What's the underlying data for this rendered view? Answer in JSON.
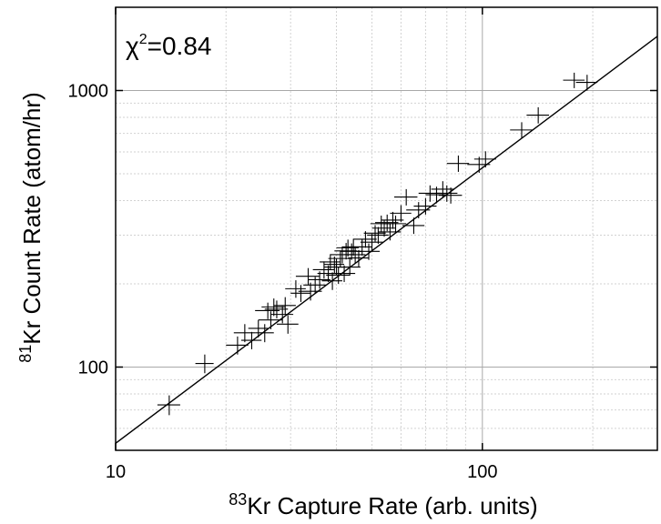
{
  "chart_data": {
    "type": "scatter",
    "xscale": "log",
    "yscale": "log",
    "xlim": [
      10,
      300
    ],
    "ylim": [
      50,
      2000
    ],
    "x_ticks": [
      10,
      100
    ],
    "x_tick_labels": [
      "10",
      "100"
    ],
    "y_ticks": [
      100,
      1000
    ],
    "y_tick_labels": [
      "100",
      "1000"
    ],
    "xlabel": {
      "sup": "83",
      "text": "Kr Capture Rate (arb. units)"
    },
    "ylabel": {
      "sup": "81",
      "text": "Kr Count Rate (atom/hr)"
    },
    "annotation": {
      "prefix": "χ",
      "sup": "2",
      "text": "=0.84"
    },
    "grid": true,
    "fit_line": {
      "x": [
        10,
        300
      ],
      "y": [
        53,
        1570
      ]
    },
    "series": [
      {
        "marker": "cross-error",
        "x": [
          14.0,
          17.5,
          21.5,
          22.5,
          23.5,
          24.5,
          25.5,
          26.0,
          26.5,
          27.0,
          27.5,
          28.5,
          29.0,
          29.5,
          31.0,
          32.0,
          33.5,
          34.0,
          35.0,
          36.0,
          37.0,
          38.0,
          38.5,
          39.0,
          39.5,
          40.0,
          40.5,
          41.0,
          41.5,
          42.0,
          42.5,
          43.0,
          43.5,
          44.0,
          44.5,
          45.0,
          46.0,
          47.0,
          48.0,
          49.0,
          50.0,
          51.0,
          52.0,
          53.0,
          54.0,
          55.0,
          56.0,
          57.0,
          58.0,
          60.0,
          62.0,
          65.0,
          67.0,
          70.0,
          72.0,
          75.0,
          78.0,
          80.0,
          82.0,
          86.0,
          98.0,
          102.0,
          128.0,
          142.0,
          178.0,
          193.0
        ],
        "y": [
          73,
          103,
          120,
          133,
          125,
          138,
          133,
          160,
          148,
          165,
          162,
          155,
          167,
          143,
          192,
          185,
          213,
          188,
          198,
          207,
          225,
          218,
          240,
          205,
          235,
          230,
          215,
          247,
          255,
          218,
          263,
          270,
          230,
          262,
          272,
          255,
          248,
          272,
          290,
          262,
          283,
          305,
          300,
          330,
          318,
          333,
          308,
          340,
          330,
          360,
          412,
          325,
          370,
          382,
          425,
          420,
          440,
          425,
          418,
          545,
          540,
          565,
          720,
          815,
          1090,
          1070
        ],
        "xerr": [
          1.0,
          1.0,
          1.5,
          1.5,
          1.5,
          1.5,
          1.5,
          2.0,
          2.0,
          2.0,
          2.0,
          2.0,
          2.0,
          2.0,
          2.0,
          2.0,
          2.5,
          2.5,
          2.5,
          2.5,
          2.5,
          2.5,
          2.5,
          2.5,
          2.5,
          3.0,
          3.0,
          3.0,
          3.0,
          3.0,
          3.0,
          3.0,
          3.0,
          3.0,
          3.0,
          3.0,
          3.0,
          3.0,
          3.5,
          3.5,
          3.5,
          3.5,
          3.5,
          3.5,
          4.0,
          4.0,
          4.0,
          4.0,
          4.0,
          4.0,
          4.5,
          4.5,
          5.0,
          5.0,
          5.0,
          5.0,
          5.5,
          5.5,
          6.0,
          6.0,
          7.0,
          7.0,
          9.0,
          10.0,
          12.0,
          13.0
        ],
        "yerr": [
          6,
          8,
          9,
          10,
          9,
          10,
          10,
          11,
          11,
          12,
          12,
          11,
          12,
          11,
          14,
          13,
          15,
          14,
          14,
          15,
          16,
          15,
          16,
          15,
          16,
          16,
          15,
          17,
          18,
          15,
          18,
          19,
          16,
          18,
          19,
          18,
          17,
          19,
          20,
          18,
          20,
          21,
          21,
          23,
          22,
          23,
          21,
          24,
          23,
          25,
          28,
          22,
          25,
          26,
          29,
          29,
          30,
          29,
          28,
          37,
          36,
          38,
          48,
          55,
          70,
          70
        ]
      }
    ]
  }
}
